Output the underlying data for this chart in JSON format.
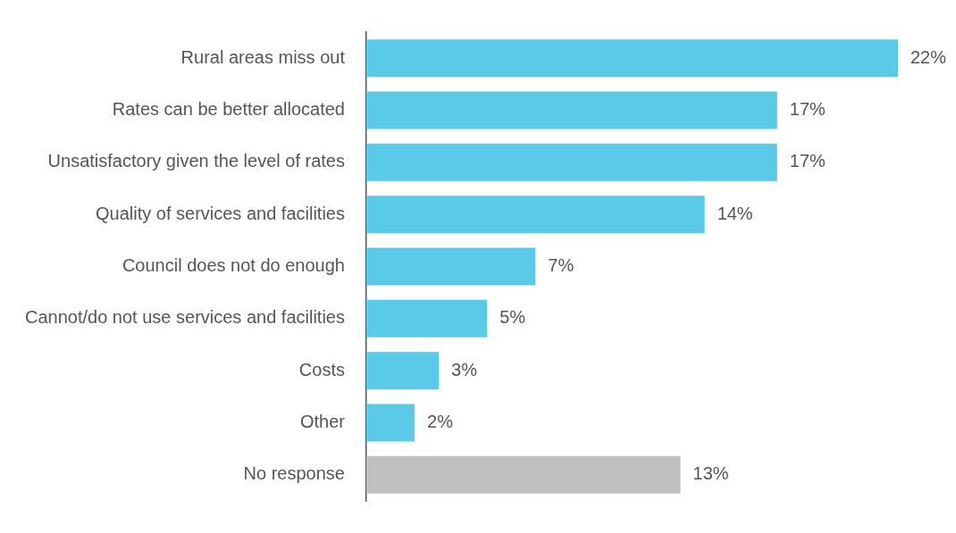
{
  "chart_data": {
    "type": "bar",
    "orientation": "horizontal",
    "categories": [
      "Rural areas miss out",
      "Rates can be better allocated",
      "Unsatisfactory given the level of rates",
      "Quality of services and facilities",
      "Council does not do enough",
      "Cannot/do not use services and facilities",
      "Costs",
      "Other",
      "No response"
    ],
    "values": [
      22,
      17,
      17,
      14,
      7,
      5,
      3,
      2,
      13
    ],
    "colors": [
      "#5bc9e8",
      "#5bc9e8",
      "#5bc9e8",
      "#5bc9e8",
      "#5bc9e8",
      "#5bc9e8",
      "#5bc9e8",
      "#5bc9e8",
      "#bfbfbf"
    ],
    "value_labels": [
      "22%",
      "17%",
      "17%",
      "14%",
      "7%",
      "5%",
      "3%",
      "2%",
      "13%"
    ]
  }
}
